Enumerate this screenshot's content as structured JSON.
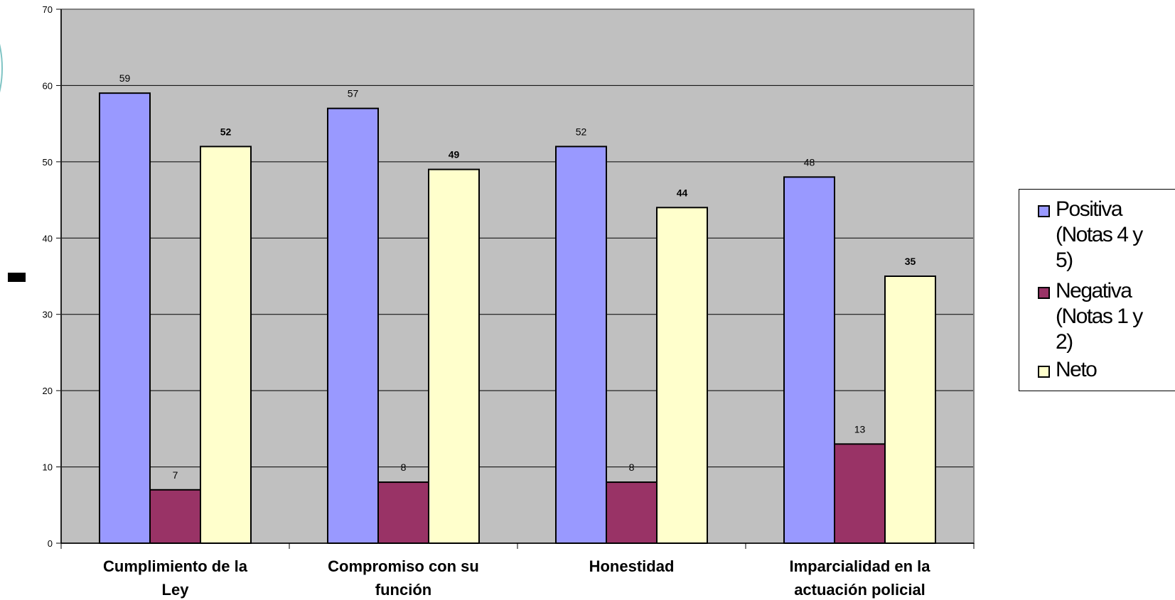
{
  "chart_data": {
    "type": "bar",
    "categories": [
      [
        "Cumplimiento de la",
        "Ley"
      ],
      [
        "Compromiso con su",
        "función"
      ],
      [
        "Honestidad"
      ],
      [
        "Imparcialidad en la",
        "actuación policial"
      ]
    ],
    "series": [
      {
        "name": "Positiva (Notas 4 y 5)",
        "values": [
          59,
          57,
          52,
          48
        ],
        "color": "#9999ff",
        "label_bold": false
      },
      {
        "name": "Negativa (Notas 1 y 2)",
        "values": [
          7,
          8,
          8,
          13
        ],
        "color": "#993366",
        "label_bold": false
      },
      {
        "name": "Neto",
        "values": [
          52,
          49,
          44,
          35
        ],
        "color": "#ffffcc",
        "label_bold": true
      }
    ],
    "ylim": [
      0,
      70
    ],
    "yticks": [
      0,
      10,
      20,
      30,
      40,
      50,
      60,
      70
    ],
    "grid": true,
    "legend_position": "right",
    "plot_background": "#c0c0c0"
  },
  "legend": {
    "items": [
      {
        "lines": [
          "Positiva",
          "(Notas 4 y",
          "5)"
        ],
        "color": "#9999ff"
      },
      {
        "lines": [
          "Negativa",
          "(Notas 1 y",
          "2)"
        ],
        "color": "#993366"
      },
      {
        "lines": [
          "Neto"
        ],
        "color": "#ffffcc"
      }
    ]
  }
}
